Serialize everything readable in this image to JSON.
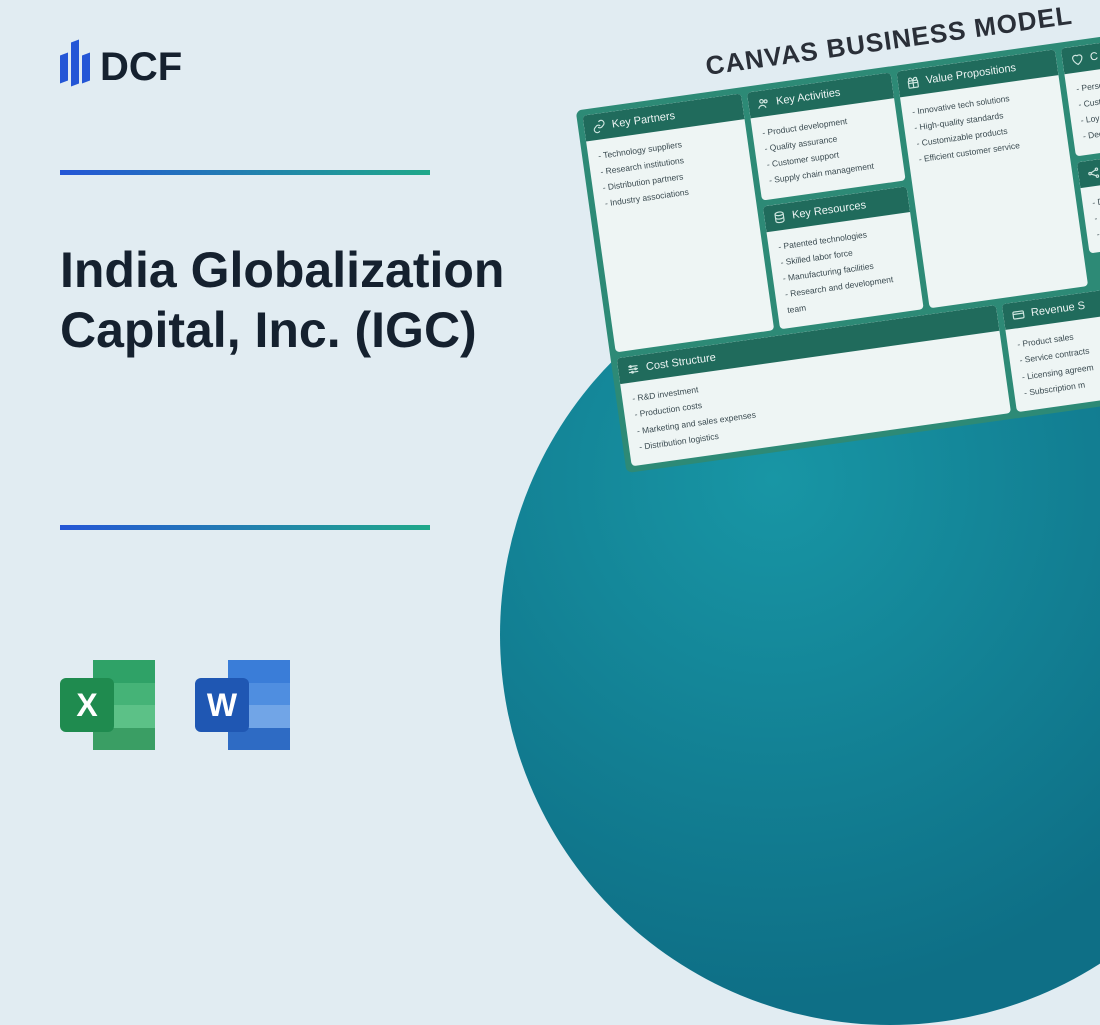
{
  "brand": {
    "name": "DCF"
  },
  "title": "India Globalization Capital, Inc. (IGC)",
  "icons": {
    "excel": "X",
    "word": "W"
  },
  "canvas": {
    "heading": "CANVAS BUSINESS MODEL",
    "key_partners": {
      "label": "Key Partners",
      "items": [
        "Technology suppliers",
        "Research institutions",
        "Distribution partners",
        "Industry associations"
      ]
    },
    "key_activities": {
      "label": "Key Activities",
      "items": [
        "Product development",
        "Quality assurance",
        "Customer support",
        "Supply chain management"
      ]
    },
    "key_resources": {
      "label": "Key Resources",
      "items": [
        "Patented technologies",
        "Skilled labor force",
        "Manufacturing facilities",
        "Research and development team"
      ]
    },
    "value_props": {
      "label": "Value Propositions",
      "items": [
        "Innovative tech solutions",
        "High-quality standards",
        "Customizable products",
        "Efficient customer service"
      ]
    },
    "customer_rel": {
      "label": "C",
      "items": [
        "Personaliz",
        "Customer",
        "Loyalty p",
        "Dedica"
      ]
    },
    "channels": {
      "label": "",
      "items": [
        "Di",
        "O",
        "C"
      ]
    },
    "cost_structure": {
      "label": "Cost Structure",
      "items": [
        "R&D investment",
        "Production costs",
        "Marketing and sales expenses",
        "Distribution logistics"
      ]
    },
    "revenue": {
      "label": "Revenue S",
      "items": [
        "Product sales",
        "Service contracts",
        "Licensing agreem",
        "Subscription m"
      ]
    }
  },
  "style": {
    "background_color": "#e1ecf2",
    "accent_gradient_from": "#2456d6",
    "accent_gradient_to": "#1fa88a",
    "canvas_board_color": "#2d8a76",
    "canvas_header_color": "#206b5c",
    "circle_color": "#0e7a92",
    "title_color": "#15212f",
    "title_fontsize": 50
  }
}
